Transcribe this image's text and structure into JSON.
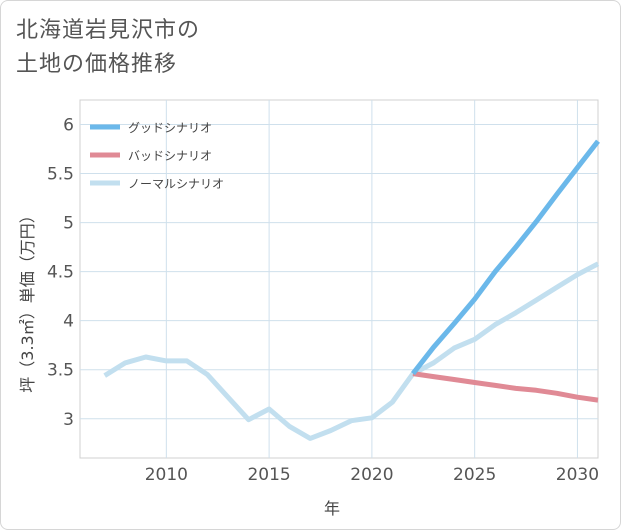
{
  "title_lines": [
    "北海道岩見沢市の",
    "土地の価格推移"
  ],
  "chart_data": {
    "type": "line",
    "title": "北海道岩見沢市の 土地の価格推移",
    "xlabel": "年",
    "ylabel": "坪（3.3㎡）単価（万円）",
    "xlim": [
      2005.8,
      2031
    ],
    "ylim": [
      2.6,
      6.25
    ],
    "xticks": [
      2010,
      2015,
      2020,
      2025,
      2030
    ],
    "yticks": [
      3,
      3.5,
      4,
      4.5,
      5,
      5.5,
      6
    ],
    "grid": true,
    "legend_position": "top-left",
    "series": [
      {
        "name": "グッドシナリオ",
        "color": "#6bb8ea",
        "x": [
          2022,
          2023,
          2024,
          2025,
          2026,
          2027,
          2028,
          2029,
          2030,
          2031
        ],
        "values": [
          3.46,
          3.73,
          3.97,
          4.22,
          4.5,
          4.75,
          5.01,
          5.29,
          5.56,
          5.83
        ]
      },
      {
        "name": "バッドシナリオ",
        "color": "#e08a95",
        "x": [
          2022,
          2023,
          2024,
          2025,
          2026,
          2027,
          2028,
          2029,
          2030,
          2031
        ],
        "values": [
          3.46,
          3.43,
          3.4,
          3.37,
          3.34,
          3.31,
          3.29,
          3.26,
          3.22,
          3.19
        ]
      },
      {
        "name": "ノーマルシナリオ",
        "color": "#c2dfef",
        "x": [
          2007,
          2008,
          2009,
          2010,
          2011,
          2012,
          2013,
          2014,
          2015,
          2016,
          2017,
          2018,
          2019,
          2020,
          2021,
          2022,
          2023,
          2024,
          2025,
          2026,
          2027,
          2028,
          2029,
          2030,
          2031
        ],
        "values": [
          3.44,
          3.57,
          3.63,
          3.59,
          3.59,
          3.45,
          3.22,
          2.99,
          3.1,
          2.92,
          2.8,
          2.88,
          2.98,
          3.01,
          3.17,
          3.46,
          3.57,
          3.72,
          3.81,
          3.96,
          4.08,
          4.21,
          4.34,
          4.47,
          4.58
        ]
      }
    ]
  }
}
